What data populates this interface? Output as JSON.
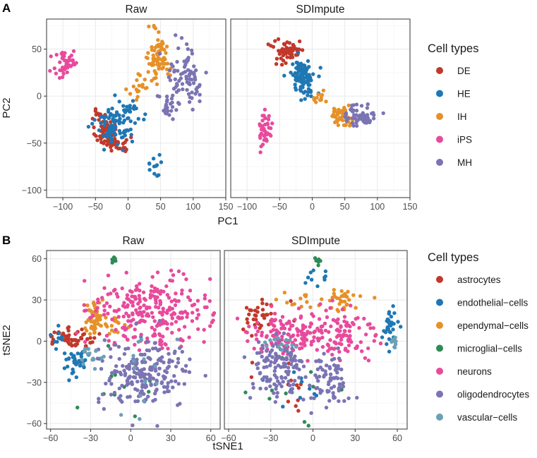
{
  "chart_data": [
    {
      "tag": "A",
      "type": "scatter",
      "facets": [
        "Raw",
        "SDImpute"
      ],
      "xlabel": "PC1",
      "ylabel": "PC2",
      "xlim": [
        -125,
        150
      ],
      "ylim": [
        -108,
        82
      ],
      "xticks": [
        -100,
        -50,
        0,
        50,
        100,
        150
      ],
      "yticks": [
        -100,
        -50,
        0,
        50
      ],
      "grid": true,
      "legend": {
        "title": "Cell types",
        "position": "right",
        "entries": [
          {
            "name": "DE",
            "color": "#c0392b"
          },
          {
            "name": "HE",
            "color": "#1f77b4"
          },
          {
            "name": "IH",
            "color": "#e69128"
          },
          {
            "name": "iPS",
            "color": "#e84a9c"
          },
          {
            "name": "MH",
            "color": "#7b74b3"
          }
        ]
      },
      "clusters": {
        "Raw": {
          "DE": [
            [
              -35,
              -38,
              10,
              9,
              60
            ],
            [
              -15,
              -52,
              12,
              6,
              25
            ],
            [
              -45,
              -20,
              5,
              6,
              8
            ]
          ],
          "HE": [
            [
              -20,
              -28,
              18,
              14,
              90
            ],
            [
              40,
              -75,
              8,
              12,
              12
            ],
            [
              10,
              -15,
              10,
              12,
              15
            ]
          ],
          "IH": [
            [
              48,
              40,
              10,
              13,
              70
            ],
            [
              20,
              10,
              12,
              10,
              20
            ],
            [
              40,
              75,
              4,
              4,
              4
            ]
          ],
          "iPS": [
            [
              -95,
              35,
              12,
              12,
              45
            ]
          ],
          "MH": [
            [
              90,
              20,
              20,
              20,
              80
            ],
            [
              60,
              -15,
              10,
              10,
              20
            ]
          ]
        },
        "SDImpute": {
          "DE": [
            [
              -35,
              50,
              15,
              6,
              55
            ],
            [
              -50,
              38,
              4,
              4,
              6
            ]
          ],
          "HE": [
            [
              -15,
              22,
              12,
              10,
              85
            ],
            [
              -5,
              5,
              10,
              5,
              10
            ]
          ],
          "IH": [
            [
              45,
              -22,
              10,
              6,
              55
            ],
            [
              10,
              0,
              6,
              6,
              12
            ]
          ],
          "iPS": [
            [
              -72,
              -36,
              6,
              12,
              40
            ]
          ],
          "MH": [
            [
              75,
              -20,
              15,
              8,
              60
            ]
          ]
        }
      }
    },
    {
      "tag": "B",
      "type": "scatter",
      "facets": [
        "Raw",
        "SDImpute"
      ],
      "xlabel": "tSNE1",
      "ylabel": "tSNE2",
      "xlim": [
        -63,
        67
      ],
      "ylim": [
        -64,
        66
      ],
      "xticks": [
        -60,
        -30,
        0,
        30,
        60
      ],
      "yticks": [
        -60,
        -30,
        0,
        30,
        60
      ],
      "grid": true,
      "legend": {
        "title": "Cell types",
        "position": "right",
        "entries": [
          {
            "name": "astrocytes",
            "color": "#c0392b"
          },
          {
            "name": "endothelial−cells",
            "color": "#1f77b4"
          },
          {
            "name": "ependymal−cells",
            "color": "#e69128"
          },
          {
            "name": "microglial−cells",
            "color": "#2e8b57"
          },
          {
            "name": "neurons",
            "color": "#e84a9c"
          },
          {
            "name": "oligodendrocytes",
            "color": "#7b74b3"
          },
          {
            "name": "vascular−cells",
            "color": "#6ba0b5"
          }
        ]
      },
      "clusters": {
        "Raw": {
          "astrocytes": [
            [
              -45,
              2,
              12,
              4,
              60
            ]
          ],
          "endothelial-cells": [
            [
              -40,
              -15,
              8,
              6,
              35
            ],
            [
              -55,
              0,
              3,
              5,
              10
            ]
          ],
          "ependymal-cells": [
            [
              -27,
              18,
              4,
              8,
              50
            ],
            [
              -15,
              10,
              10,
              5,
              20
            ]
          ],
          "microglial-cells": [
            [
              -13,
              59,
              1.5,
              2,
              6
            ],
            [
              -10,
              -30,
              20,
              20,
              12
            ]
          ],
          "neurons": [
            [
              15,
              25,
              28,
              14,
              220
            ],
            [
              20,
              5,
              20,
              6,
              40
            ]
          ],
          "oligodendrocytes": [
            [
              10,
              -25,
              22,
              15,
              200
            ]
          ],
          "vascular-cells": [
            [
              -30,
              -10,
              5,
              4,
              15
            ],
            [
              5,
              -20,
              25,
              20,
              15
            ]
          ]
        },
        "SDImpute": {
          "astrocytes": [
            [
              -35,
              20,
              10,
              8,
              35
            ],
            [
              -20,
              -30,
              15,
              10,
              15
            ]
          ],
          "endothelial-cells": [
            [
              55,
              8,
              3,
              8,
              30
            ],
            [
              -5,
              45,
              10,
              6,
              10
            ],
            [
              -10,
              -35,
              15,
              15,
              10
            ]
          ],
          "ependymal-cells": [
            [
              20,
              30,
              12,
              5,
              35
            ],
            [
              -10,
              30,
              10,
              6,
              10
            ]
          ],
          "microglial-cells": [
            [
              3,
              58,
              2,
              2,
              6
            ],
            [
              -5,
              -30,
              20,
              20,
              10
            ]
          ],
          "neurons": [
            [
              -20,
              5,
              20,
              10,
              130
            ],
            [
              20,
              5,
              15,
              15,
              100
            ]
          ],
          "oligodendrocytes": [
            [
              -25,
              -20,
              13,
              15,
              120
            ],
            [
              10,
              -30,
              10,
              12,
              80
            ]
          ],
          "vascular-cells": [
            [
              -25,
              0,
              10,
              5,
              15
            ],
            [
              58,
              0,
              2,
              4,
              8
            ]
          ]
        }
      }
    }
  ]
}
